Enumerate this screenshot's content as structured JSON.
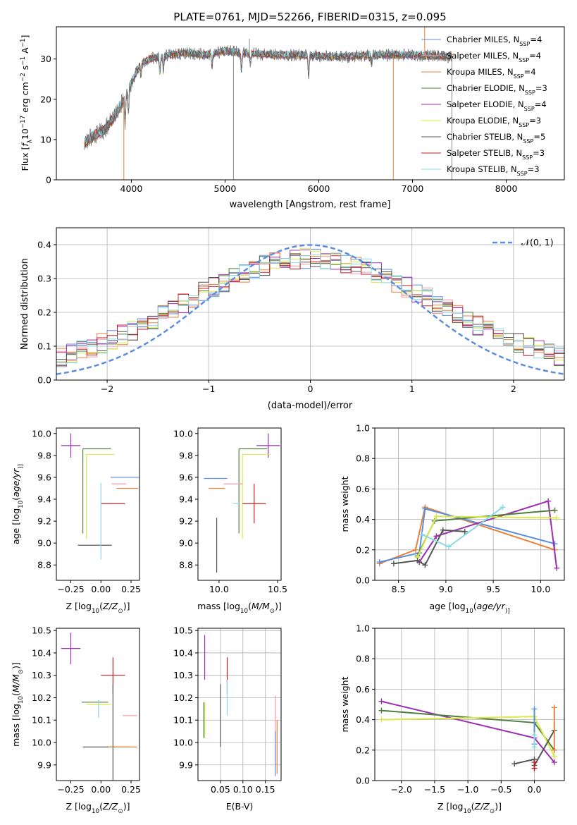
{
  "figure_title": "PLATE=0761, MJD=52266, FIBERID=0315, z=0.095",
  "colors": {
    "chabrier_miles": "#5b8ee0",
    "salpeter_miles": "#f49aa8",
    "kroupa_miles": "#e8823a",
    "chabrier_elodie": "#4f7f3f",
    "salpeter_elodie": "#9b2fb0",
    "kroupa_elodie": "#dce84a",
    "chabrier_stelib": "#555555",
    "salpeter_stelib": "#c02020",
    "kroupa_stelib": "#88d8e6",
    "normal": "#5b8ee0",
    "grid": "#b0b0b0"
  },
  "chart_data": [
    {
      "id": "spectrum",
      "type": "line",
      "xlabel": "wavelength [Angstrom, rest frame]",
      "ylabel_parts": [
        "Flux [",
        "f",
        "λ",
        "10",
        "−17",
        " erg cm",
        "−2",
        " s",
        "−1",
        " A",
        "−1",
        "]"
      ],
      "xlim": [
        3200,
        8620
      ],
      "ylim": [
        0,
        38
      ],
      "xticks": [
        4000,
        5000,
        6000,
        7000,
        8000
      ],
      "yticks": [
        0,
        10,
        20,
        30
      ],
      "grid": false,
      "legend_position": "top-right",
      "legend": [
        {
          "key": "chabrier_miles",
          "imf": "Chabrier",
          "lib": "MILES",
          "n": "4"
        },
        {
          "key": "salpeter_miles",
          "imf": "Salpeter",
          "lib": "MILES",
          "n": "4"
        },
        {
          "key": "kroupa_miles",
          "imf": "Kroupa",
          "lib": "MILES",
          "n": "4"
        },
        {
          "key": "chabrier_elodie",
          "imf": "Chabrier",
          "lib": "ELODIE",
          "n": "3"
        },
        {
          "key": "salpeter_elodie",
          "imf": "Salpeter",
          "lib": "ELODIE",
          "n": "4"
        },
        {
          "key": "kroupa_elodie",
          "imf": "Kroupa",
          "lib": "ELODIE",
          "n": "3"
        },
        {
          "key": "chabrier_stelib",
          "imf": "Chabrier",
          "lib": "STELIB",
          "n": "5"
        },
        {
          "key": "salpeter_stelib",
          "imf": "Salpeter",
          "lib": "STELIB",
          "n": "3"
        },
        {
          "key": "kroupa_stelib",
          "imf": "Kroupa",
          "lib": "STELIB",
          "n": "3"
        }
      ],
      "legend_nssp_label": "N",
      "legend_nssp_sub": "SSP",
      "continuum": [
        [
          3500,
          9
        ],
        [
          3600,
          11
        ],
        [
          3700,
          12
        ],
        [
          3800,
          15
        ],
        [
          3900,
          19
        ],
        [
          4000,
          24
        ],
        [
          4100,
          29
        ],
        [
          4200,
          30
        ],
        [
          4400,
          31
        ],
        [
          4600,
          31.5
        ],
        [
          4800,
          31
        ],
        [
          5000,
          32
        ],
        [
          5200,
          31.5
        ],
        [
          5500,
          31
        ],
        [
          5800,
          31
        ],
        [
          6200,
          30.5
        ],
        [
          6600,
          31
        ],
        [
          7000,
          31
        ],
        [
          7400,
          30.5
        ]
      ],
      "data_range": [
        3500,
        7420
      ],
      "model_range": [
        3500,
        7420
      ],
      "absorption_features": [
        [
          3934,
          -6
        ],
        [
          3969,
          -5
        ],
        [
          4102,
          -3
        ],
        [
          4304,
          -4
        ],
        [
          4341,
          -3
        ],
        [
          4861,
          -3
        ],
        [
          5175,
          -4
        ],
        [
          5270,
          -2
        ],
        [
          5892,
          -5
        ],
        [
          6563,
          -2
        ]
      ],
      "spikes": [
        [
          3920,
          0
        ],
        [
          5090,
          0
        ],
        [
          6795,
          0
        ],
        [
          7420,
          0
        ],
        [
          7130,
          39
        ],
        [
          5260,
          35
        ]
      ]
    },
    {
      "id": "residual_hist",
      "type": "histogram",
      "xlabel": "(data-model)/error",
      "ylabel": "Normed distribution",
      "xlim": [
        -2.5,
        2.5
      ],
      "ylim": [
        0,
        0.45
      ],
      "xticks": [
        -2,
        -1,
        0,
        1,
        2
      ],
      "xtick_labels": [
        "−2",
        "−1",
        "0",
        "1",
        "2"
      ],
      "yticks": [
        0.0,
        0.1,
        0.2,
        0.3,
        0.4
      ],
      "grid": true,
      "bin_width": 0.1,
      "legend_position": "top-right",
      "normal_label": "𝒩(0, 1)",
      "normal_mean": 0,
      "normal_sigma": 1
    },
    {
      "id": "age_vs_Z",
      "type": "scatter",
      "xlabel": "Z [log10(Z/Z⊙)]",
      "xlabel_parts": [
        "Z [log",
        "10",
        "(",
        "Z/Z",
        "⊙",
        ")]"
      ],
      "ylabel_parts": [
        "age  [log",
        "10",
        "(",
        "age/yr",
        ")]"
      ],
      "xlim": [
        -0.37,
        0.32
      ],
      "ylim": [
        8.66,
        10.05
      ],
      "xticks": [
        -0.25,
        0.0,
        0.25
      ],
      "xtick_labels": [
        "−0.25",
        "0.00",
        "0.25"
      ],
      "yticks": [
        8.8,
        9.0,
        9.2,
        9.4,
        9.6,
        9.8,
        10.0
      ],
      "grid": false,
      "points": [
        {
          "key": "salpeter_elodie",
          "x": -0.25,
          "y": 9.89,
          "xerr": 0.08,
          "yerr": 0.11
        },
        {
          "key": "chabrier_elodie",
          "x": -0.15,
          "y": 9.86,
          "xerr": 0.0,
          "yerr": 0.0
        },
        {
          "key": "kroupa_elodie",
          "x": -0.12,
          "y": 9.81,
          "xerr": 0.0,
          "yerr": 0.0
        },
        {
          "key": "chabrier_miles",
          "x": 0.2,
          "y": 9.6,
          "xerr": 0.12,
          "yerr": 0.0
        },
        {
          "key": "kroupa_miles",
          "x": 0.22,
          "y": 9.5,
          "xerr": 0.09,
          "yerr": 0.0
        },
        {
          "key": "salpeter_miles",
          "x": 0.15,
          "y": 9.54,
          "xerr": 0.06,
          "yerr": 0.0
        },
        {
          "key": "salpeter_stelib",
          "x": 0.1,
          "y": 9.36,
          "xerr": 0.1,
          "yerr": 0.0
        },
        {
          "key": "chabrier_stelib",
          "x": -0.05,
          "y": 8.98,
          "xerr": 0.14,
          "yerr": 0.0
        },
        {
          "key": "kroupa_stelib",
          "x": 0.0,
          "y": 9.2,
          "xerr": 0.0,
          "yerr": 0.35
        }
      ]
    },
    {
      "id": "age_vs_mass",
      "type": "scatter",
      "xlabel_parts": [
        "mass [log",
        "10",
        "(",
        "M/M",
        "⊙",
        ")]"
      ],
      "ylabel": "",
      "xlim": [
        9.82,
        10.53
      ],
      "ylim": [
        8.66,
        10.05
      ],
      "xticks": [
        10.0,
        10.5
      ],
      "xtick_labels": [
        "10.0",
        "10.5"
      ],
      "yticks": [
        8.8,
        9.0,
        9.2,
        9.4,
        9.6,
        9.8,
        10.0
      ],
      "grid": false,
      "points": [
        {
          "key": "salpeter_elodie",
          "x": 10.42,
          "y": 9.89,
          "xerr": 0.1,
          "yerr": 0.11
        },
        {
          "key": "chabrier_elodie",
          "x": 10.17,
          "y": 9.86,
          "xerr": 0.0,
          "yerr": 0.0
        },
        {
          "key": "kroupa_elodie",
          "x": 10.2,
          "y": 9.81,
          "xerr": 0.0,
          "yerr": 0.0
        },
        {
          "key": "chabrier_miles",
          "x": 9.97,
          "y": 9.59,
          "xerr": 0.1,
          "yerr": 0.0
        },
        {
          "key": "kroupa_miles",
          "x": 9.98,
          "y": 9.5,
          "xerr": 0.07,
          "yerr": 0.0
        },
        {
          "key": "salpeter_miles",
          "x": 10.12,
          "y": 9.54,
          "xerr": 0.08,
          "yerr": 0.0
        },
        {
          "key": "salpeter_stelib",
          "x": 10.3,
          "y": 9.36,
          "xerr": 0.1,
          "yerr": 0.18
        },
        {
          "key": "chabrier_stelib",
          "x": 9.98,
          "y": 8.98,
          "xerr": 0.0,
          "yerr": 0.25
        },
        {
          "key": "kroupa_stelib",
          "x": 10.15,
          "y": 9.36,
          "xerr": 0.03,
          "yerr": 0.0
        }
      ]
    },
    {
      "id": "weight_vs_age",
      "type": "line",
      "xlabel_parts": [
        "age  [log",
        "10",
        "(",
        "age/yr",
        ")]"
      ],
      "ylabel": "mass weight",
      "xlim": [
        8.25,
        10.25
      ],
      "ylim": [
        0,
        1
      ],
      "xticks": [
        8.5,
        9.0,
        9.5,
        10.0
      ],
      "xtick_labels": [
        "8.5",
        "9.0",
        "9.5",
        "10.0"
      ],
      "yticks": [
        0.0,
        0.2,
        0.4,
        0.6,
        0.8,
        1.0
      ],
      "grid": true,
      "series": [
        {
          "key": "kroupa_miles",
          "x": [
            8.3,
            8.68,
            8.78,
            10.15
          ],
          "y": [
            0.11,
            0.2,
            0.48,
            0.2
          ]
        },
        {
          "key": "chabrier_miles",
          "x": [
            8.3,
            8.72,
            8.78,
            10.15
          ],
          "y": [
            0.12,
            0.18,
            0.47,
            0.24
          ]
        },
        {
          "key": "salpeter_elodie",
          "x": [
            8.72,
            8.9,
            10.08,
            10.17
          ],
          "y": [
            0.12,
            0.29,
            0.52,
            0.08
          ]
        },
        {
          "key": "chabrier_elodie",
          "x": [
            8.7,
            8.88,
            10.15
          ],
          "y": [
            0.16,
            0.39,
            0.46
          ]
        },
        {
          "key": "kroupa_elodie",
          "x": [
            8.7,
            8.9,
            10.17
          ],
          "y": [
            0.15,
            0.42,
            0.41
          ]
        },
        {
          "key": "chabrier_stelib",
          "x": [
            8.45,
            8.7,
            8.78,
            8.97,
            9.2
          ],
          "y": [
            0.11,
            0.13,
            0.1,
            0.33,
            0.32
          ]
        },
        {
          "key": "kroupa_stelib",
          "x": [
            8.75,
            9.03,
            9.6
          ],
          "y": [
            0.3,
            0.22,
            0.48
          ]
        }
      ]
    },
    {
      "id": "mass_vs_Z",
      "type": "scatter",
      "xlabel_parts": [
        "Z [log",
        "10",
        "(",
        "Z/Z",
        "⊙",
        ")]"
      ],
      "ylabel_parts": [
        "mass [log",
        "10",
        "(",
        "M/M",
        "⊙",
        ")]"
      ],
      "xlim": [
        -0.37,
        0.32
      ],
      "ylim": [
        9.83,
        10.51
      ],
      "xticks": [
        -0.25,
        0.0,
        0.25
      ],
      "xtick_labels": [
        "−0.25",
        "0.00",
        "0.25"
      ],
      "yticks": [
        9.9,
        10.0,
        10.1,
        10.2,
        10.3,
        10.4,
        10.5
      ],
      "grid": false,
      "points": [
        {
          "key": "salpeter_elodie",
          "x": -0.25,
          "y": 10.42,
          "xerr": 0.08,
          "yerr": 0.07
        },
        {
          "key": "chabrier_elodie",
          "x": -0.05,
          "y": 10.18,
          "xerr": 0.11,
          "yerr": 0.0
        },
        {
          "key": "kroupa_elodie",
          "x": -0.02,
          "y": 10.17,
          "xerr": 0.1,
          "yerr": 0.0
        },
        {
          "key": "salpeter_stelib",
          "x": 0.1,
          "y": 10.3,
          "xerr": 0.1,
          "yerr": 0.08
        },
        {
          "key": "chabrier_stelib",
          "x": 0.1,
          "y": 10.0,
          "xerr": 0.0,
          "yerr": 0.26
        },
        {
          "key": "chabrier_stelib",
          "x": 0.05,
          "y": 9.98,
          "xerr": 0.2,
          "yerr": 0.0
        },
        {
          "key": "salpeter_miles",
          "x": 0.24,
          "y": 10.12,
          "xerr": 0.06,
          "yerr": 0.0
        },
        {
          "key": "kroupa_miles",
          "x": 0.18,
          "y": 9.98,
          "xerr": 0.12,
          "yerr": 0.0
        },
        {
          "key": "kroupa_stelib",
          "x": -0.02,
          "y": 10.15,
          "xerr": 0.0,
          "yerr": 0.04
        }
      ]
    },
    {
      "id": "mass_vs_ebv",
      "type": "scatter",
      "xlabel": "E(B-V)",
      "ylabel": "",
      "xlim": [
        0.0,
        0.185
      ],
      "ylim": [
        9.83,
        10.51
      ],
      "xticks": [
        0.05,
        0.1,
        0.15
      ],
      "xtick_labels": [
        "0.05",
        "0.10",
        "0.15"
      ],
      "yticks": [
        9.9,
        10.0,
        10.1,
        10.2,
        10.3,
        10.4,
        10.5
      ],
      "grid": true,
      "points": [
        {
          "key": "salpeter_elodie",
          "x": 0.015,
          "y": 10.38,
          "xerr": 0.0,
          "yerr": 0.1
        },
        {
          "key": "kroupa_elodie",
          "x": 0.015,
          "y": 10.1,
          "xerr": 0.0,
          "yerr": 0.08
        },
        {
          "key": "chabrier_elodie",
          "x": 0.013,
          "y": 10.1,
          "xerr": 0.0,
          "yerr": 0.08
        },
        {
          "key": "chabrier_stelib",
          "x": 0.05,
          "y": 10.12,
          "xerr": 0.0,
          "yerr": 0.14
        },
        {
          "key": "salpeter_stelib",
          "x": 0.065,
          "y": 10.3,
          "xerr": 0.0,
          "yerr": 0.08
        },
        {
          "key": "kroupa_stelib",
          "x": 0.065,
          "y": 10.2,
          "xerr": 0.0,
          "yerr": 0.08
        },
        {
          "key": "salpeter_miles",
          "x": 0.172,
          "y": 10.05,
          "xerr": 0.0,
          "yerr": 0.16
        },
        {
          "key": "kroupa_miles",
          "x": 0.176,
          "y": 9.98,
          "xerr": 0.0,
          "yerr": 0.12
        },
        {
          "key": "chabrier_miles",
          "x": 0.172,
          "y": 9.95,
          "xerr": 0.0,
          "yerr": 0.1
        }
      ]
    },
    {
      "id": "weight_vs_Z",
      "type": "line",
      "xlabel_parts": [
        "Z [log",
        "10",
        "(",
        "Z/Z",
        "⊙",
        ")]"
      ],
      "ylabel": "mass weight",
      "xlim": [
        -2.4,
        0.45
      ],
      "ylim": [
        0,
        1
      ],
      "xticks": [
        -2.0,
        -1.5,
        -1.0,
        -0.5,
        0.0
      ],
      "xtick_labels": [
        "−2.0",
        "−1.5",
        "−1.0",
        "−0.5",
        "0.0"
      ],
      "yticks": [
        0.0,
        0.2,
        0.4,
        0.6,
        0.8,
        1.0
      ],
      "grid": true,
      "series": [
        {
          "key": "salpeter_elodie",
          "x": [
            -2.3,
            0.0,
            0.3
          ],
          "y": [
            0.52,
            0.28,
            0.12
          ]
        },
        {
          "key": "chabrier_elodie",
          "x": [
            -2.3,
            0.0,
            0.3
          ],
          "y": [
            0.46,
            0.38,
            0.2
          ]
        },
        {
          "key": "kroupa_elodie",
          "x": [
            -2.3,
            0.0,
            0.3
          ],
          "y": [
            0.4,
            0.42,
            0.16
          ]
        },
        {
          "key": "chabrier_stelib",
          "x": [
            -0.3,
            0.0,
            0.0,
            0.3
          ],
          "y": [
            0.11,
            0.14,
            0.1,
            0.33
          ]
        },
        {
          "key": "kroupa_miles",
          "x": [
            0.3,
            0.3
          ],
          "y": [
            0.2,
            0.48
          ]
        },
        {
          "key": "chabrier_miles",
          "x": [
            0.0,
            0.0
          ],
          "y": [
            0.24,
            0.47
          ]
        },
        {
          "key": "salpeter_stelib",
          "x": [
            0.0,
            0.0
          ],
          "y": [
            0.08,
            0.12
          ]
        },
        {
          "key": "kroupa_stelib",
          "x": [
            0.0,
            0.0
          ],
          "y": [
            0.22,
            0.3
          ]
        }
      ]
    }
  ]
}
